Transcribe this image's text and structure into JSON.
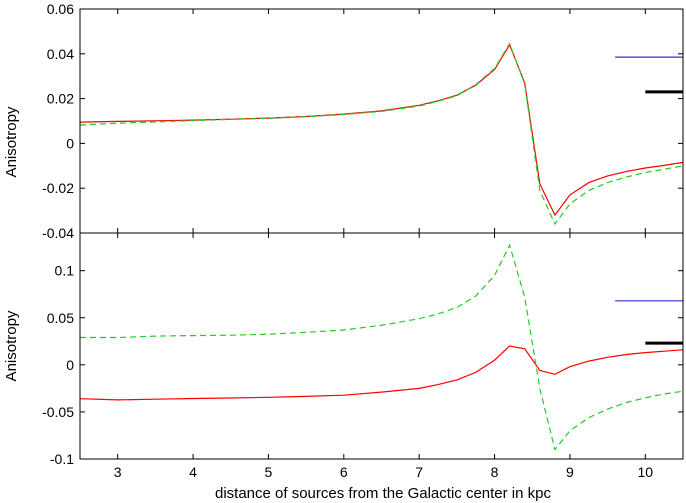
{
  "chart_data": [
    {
      "type": "line",
      "ylabel": "Anisotropy",
      "xlim": [
        2.5,
        10.5
      ],
      "ylim": [
        -0.04,
        0.06
      ],
      "yticks": [
        -0.04,
        -0.02,
        0,
        0.02,
        0.04,
        0.06
      ],
      "ytick_labels": [
        "-0.04",
        "-0.02",
        "0",
        "0.02",
        "0.04",
        "0.06"
      ],
      "grid": false,
      "legend": "none",
      "series": [
        {
          "color": "#ff0000",
          "style": "solid",
          "x": [
            2.5,
            3,
            3.5,
            4,
            4.5,
            5,
            5.5,
            6,
            6.5,
            7,
            7.25,
            7.5,
            7.75,
            8,
            8.2,
            8.4,
            8.6,
            8.8,
            9,
            9.25,
            9.5,
            9.75,
            10,
            10.25,
            10.5
          ],
          "y": [
            0.0095,
            0.0098,
            0.0101,
            0.0104,
            0.0108,
            0.0113,
            0.012,
            0.0131,
            0.0145,
            0.017,
            0.019,
            0.0215,
            0.026,
            0.033,
            0.044,
            0.027,
            -0.018,
            -0.032,
            -0.023,
            -0.0175,
            -0.0145,
            -0.0125,
            -0.011,
            -0.0098,
            -0.0085
          ]
        },
        {
          "color": "#22cc22",
          "style": "dashed",
          "x": [
            2.5,
            3,
            3.5,
            4,
            4.5,
            5,
            5.5,
            6,
            6.5,
            7,
            7.25,
            7.5,
            7.75,
            8,
            8.2,
            8.4,
            8.6,
            8.8,
            9,
            9.25,
            9.5,
            9.75,
            10,
            10.25,
            10.5
          ],
          "y": [
            0.0082,
            0.009,
            0.0096,
            0.0102,
            0.0107,
            0.0112,
            0.0119,
            0.0129,
            0.0143,
            0.0167,
            0.0188,
            0.0213,
            0.0262,
            0.0335,
            0.0445,
            0.0265,
            -0.021,
            -0.036,
            -0.027,
            -0.021,
            -0.0175,
            -0.015,
            -0.013,
            -0.0115,
            -0.01
          ]
        }
      ],
      "reference_bars": [
        {
          "color": "#3333cc",
          "x": [
            9.6,
            10.5
          ],
          "y": 0.0385
        },
        {
          "color": "#000000",
          "x": [
            10.0,
            10.5
          ],
          "y": 0.023
        }
      ]
    },
    {
      "type": "line",
      "ylabel": "Anisotropy",
      "xlabel": "distance of sources from the Galactic center in kpc",
      "xlim": [
        2.5,
        10.5
      ],
      "xticks": [
        3,
        4,
        5,
        6,
        7,
        8,
        9,
        10
      ],
      "xtick_labels": [
        "3",
        "4",
        "5",
        "6",
        "7",
        "8",
        "9",
        "10"
      ],
      "ylim": [
        -0.1,
        0.14
      ],
      "yticks": [
        -0.1,
        -0.05,
        0,
        0.05,
        0.1
      ],
      "ytick_labels": [
        "-0.1",
        "-0.05",
        "0",
        "0.05",
        "0.1"
      ],
      "grid": false,
      "legend": "none",
      "series": [
        {
          "color": "#ff0000",
          "style": "solid",
          "x": [
            2.5,
            3,
            3.5,
            4,
            4.5,
            5,
            5.5,
            6,
            6.5,
            7,
            7.25,
            7.5,
            7.75,
            8,
            8.2,
            8.4,
            8.6,
            8.8,
            9,
            9.25,
            9.5,
            9.75,
            10,
            10.25,
            10.5
          ],
          "y": [
            -0.036,
            -0.0372,
            -0.0365,
            -0.0358,
            -0.0352,
            -0.0345,
            -0.0335,
            -0.0322,
            -0.029,
            -0.025,
            -0.021,
            -0.016,
            -0.008,
            0.005,
            0.02,
            0.017,
            -0.006,
            -0.01,
            -0.002,
            0.004,
            0.008,
            0.011,
            0.013,
            0.0145,
            0.016
          ]
        },
        {
          "color": "#22cc22",
          "style": "dashed",
          "x": [
            2.5,
            3,
            3.5,
            4,
            4.5,
            5,
            5.5,
            6,
            6.5,
            7,
            7.25,
            7.5,
            7.75,
            8,
            8.2,
            8.4,
            8.6,
            8.8,
            9,
            9.25,
            9.5,
            9.75,
            10,
            10.25,
            10.5
          ],
          "y": [
            0.029,
            0.029,
            0.0305,
            0.031,
            0.0315,
            0.0325,
            0.0345,
            0.037,
            0.042,
            0.049,
            0.054,
            0.061,
            0.073,
            0.095,
            0.127,
            0.072,
            -0.025,
            -0.09,
            -0.07,
            -0.056,
            -0.047,
            -0.04,
            -0.035,
            -0.031,
            -0.028
          ]
        }
      ],
      "reference_bars": [
        {
          "color": "#3333cc",
          "x": [
            9.6,
            10.5
          ],
          "y": 0.068
        },
        {
          "color": "#000000",
          "x": [
            10.0,
            10.5
          ],
          "y": 0.023
        }
      ]
    }
  ]
}
